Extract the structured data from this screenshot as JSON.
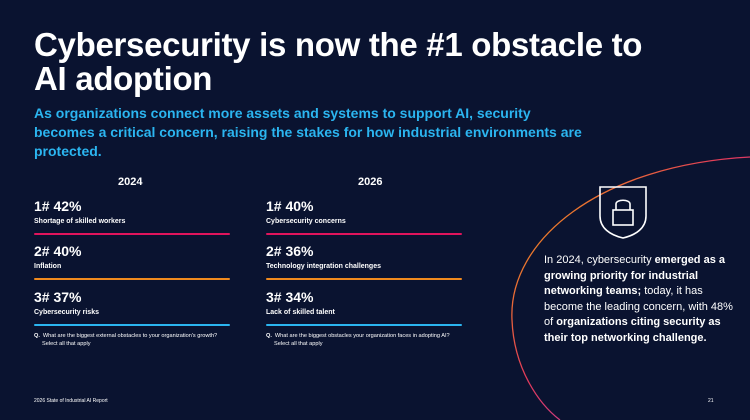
{
  "header": {
    "title": "Cybersecurity is now the #1 obstacle to AI adoption",
    "subtitle": "As organizations connect more assets and systems to support AI, security becomes a critical concern, raising the stakes for how industrial environments are protected."
  },
  "colors": {
    "background": "#0a1330",
    "accent_blue": "#2bb5f0",
    "rank1": "#e0145c",
    "rank2": "#f08a1e",
    "rank3": "#2bb5f0"
  },
  "col2024": {
    "year": "2024",
    "items": [
      {
        "stat": "1# 42%",
        "label": "Shortage of skilled workers"
      },
      {
        "stat": "2# 40%",
        "label": "Inflation"
      },
      {
        "stat": "3# 37%",
        "label": "Cybersecurity risks"
      }
    ],
    "question": "What are the biggest external obstacles to your organization's growth?",
    "note": "Select all that apply"
  },
  "col2026": {
    "year": "2026",
    "items": [
      {
        "stat": "1# 40%",
        "label": "Cybersecurity concerns"
      },
      {
        "stat": "2# 36%",
        "label": "Technology integration challenges"
      },
      {
        "stat": "3# 34%",
        "label": "Lack of skilled talent"
      }
    ],
    "question": "What are the biggest obstacles your organization faces in adopting AI?",
    "note": "Select all that apply"
  },
  "q_marker": "Q.",
  "callout": {
    "icon": "shield-lock-icon",
    "part1": "In 2024, cybersecurity ",
    "part2": "emerged as a growing priority for industrial networking teams;",
    "part3": " today, it has become the leading concern, with 48% of ",
    "part4": "organizations citing security as their top networking challenge."
  },
  "footer": {
    "report": "2026 State of Industrial AI Report",
    "page": "21"
  }
}
